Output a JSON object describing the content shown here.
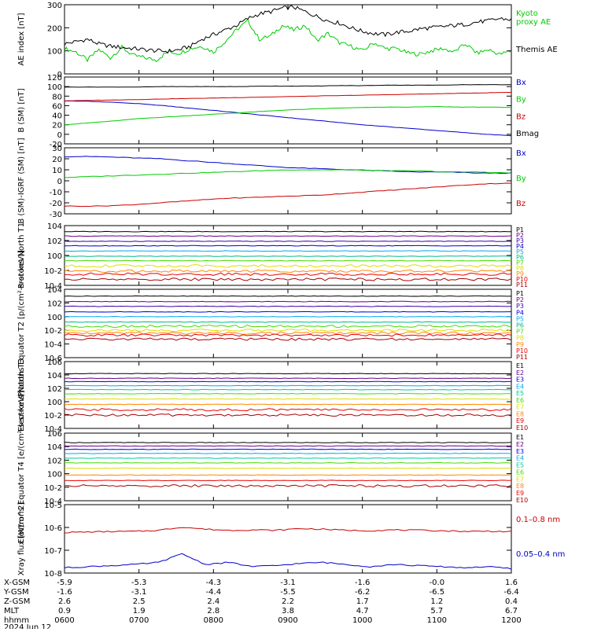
{
  "chart_data": {
    "type": "line",
    "date": "2024 Jun 12",
    "x_ticks": [
      "0600",
      "0700",
      "0800",
      "0900",
      "1000",
      "1100",
      "1200"
    ],
    "orbit": {
      "rows": [
        {
          "label": "X-GSM",
          "values": [
            "-5.9",
            "-5.3",
            "-4.3",
            "-3.1",
            "-1.6",
            "-0.0",
            "1.6"
          ]
        },
        {
          "label": "Y-GSM",
          "values": [
            "-1.6",
            "-3.1",
            "-4.4",
            "-5.5",
            "-6.2",
            "-6.5",
            "-6.4"
          ]
        },
        {
          "label": "Z-GSM",
          "values": [
            "2.6",
            "2.5",
            "2.4",
            "2.2",
            "1.7",
            "1.2",
            "0.4"
          ]
        },
        {
          "label": "MLT",
          "values": [
            "0.9",
            "1.9",
            "2.8",
            "3.8",
            "4.7",
            "5.7",
            "6.7"
          ]
        },
        {
          "label": "hhmm",
          "values": [
            "0600",
            "0700",
            "0800",
            "0900",
            "1000",
            "1100",
            "1200"
          ]
        }
      ]
    },
    "panels": [
      {
        "id": "ae",
        "ylabel": "AE index [nT]",
        "scale": "linear",
        "ylim": [
          0,
          300
        ],
        "ticks": [
          "0",
          "100",
          "200",
          "300"
        ],
        "series": [
          {
            "name": "Kyoto proxy AE",
            "color": "#00cc00",
            "values": [
              110,
              95,
              60,
              105,
              70,
              115,
              80,
              70,
              60,
              95,
              90,
              110,
              120,
              95,
              140,
              190,
              230,
              150,
              165,
              210,
              190,
              210,
              145,
              175,
              135,
              120,
              100,
              135,
              110,
              110,
              90,
              85,
              100,
              110,
              95,
              130,
              90,
              105,
              85,
              100
            ]
          },
          {
            "name": "Themis AE",
            "color": "#000000",
            "values": [
              130,
              140,
              150,
              130,
              120,
              115,
              110,
              105,
              100,
              98,
              105,
              120,
              150,
              170,
              190,
              210,
              240,
              260,
              270,
              285,
              290,
              270,
              250,
              230,
              220,
              200,
              185,
              175,
              170,
              180,
              185,
              195,
              200,
              205,
              210,
              215,
              225,
              230,
              240,
              235
            ]
          }
        ]
      },
      {
        "id": "b",
        "ylabel": "B (SM) [nT]",
        "scale": "linear",
        "ylim": [
          -20,
          120
        ],
        "ticks": [
          "-20",
          "0",
          "20",
          "40",
          "60",
          "80",
          "100",
          "120"
        ],
        "series": [
          {
            "name": "Bx",
            "color": "#0000cc",
            "values": [
              70,
              69,
              67,
              64,
              60,
              55,
              50,
              45,
              40,
              35,
              30,
              25,
              20,
              16,
              12,
              8,
              4,
              0,
              -3
            ]
          },
          {
            "name": "By",
            "color": "#00cc00",
            "values": [
              20,
              24,
              28,
              33,
              36,
              39,
              42,
              45,
              48,
              51,
              53,
              55,
              56,
              57,
              57,
              58,
              57,
              57,
              56
            ]
          },
          {
            "name": "Bz",
            "color": "#cc0000",
            "values": [
              70,
              71,
              72,
              73,
              74,
              75,
              76,
              77,
              78,
              79,
              80,
              81,
              82,
              83,
              84,
              85,
              86,
              87,
              88
            ]
          },
          {
            "name": "Bmag",
            "color": "#000000",
            "values": [
              99,
              99,
              99,
              99,
              100,
              100,
              100,
              100,
              101,
              101,
              101,
              102,
              102,
              103,
              103,
              103,
              104,
              104,
              104
            ]
          }
        ]
      },
      {
        "id": "dbb",
        "ylabel": "B (SM)-IGRF (SM) [nT]",
        "scale": "linear",
        "ylim": [
          -30,
          30
        ],
        "ticks": [
          "-30",
          "-20",
          "-10",
          "0",
          "10",
          "20",
          "30"
        ],
        "series": [
          {
            "name": "Bx",
            "color": "#0000cc",
            "values": [
              22,
              22,
              21,
              20,
              18,
              16,
              14,
              12,
              11,
              10,
              9,
              8,
              8,
              7,
              7
            ]
          },
          {
            "name": "By",
            "color": "#00cc00",
            "values": [
              3,
              4,
              5,
              6,
              7,
              8,
              9,
              10,
              10,
              10,
              9,
              9,
              8,
              8,
              7
            ]
          },
          {
            "name": "Bz",
            "color": "#cc0000",
            "values": [
              -23,
              -23,
              -22,
              -20,
              -18,
              -16,
              -15,
              -14,
              -13,
              -11,
              -9,
              -7,
              -5,
              -3,
              -2
            ]
          }
        ]
      },
      {
        "id": "pn",
        "ylabel": "Protons North T1",
        "scale": "log",
        "ylim": [
          -4,
          4
        ],
        "ticks": [
          "10-4",
          "10-2",
          "100",
          "102",
          "104"
        ],
        "series": [
          {
            "name": "P1",
            "color": "#000000",
            "level": 3.2
          },
          {
            "name": "P2",
            "color": "#6a008a",
            "level": 2.6
          },
          {
            "name": "P3",
            "color": "#3a00aa",
            "level": 1.9
          },
          {
            "name": "P4",
            "color": "#0000dd",
            "level": 1.3
          },
          {
            "name": "P5",
            "color": "#00aaee",
            "level": 0.6
          },
          {
            "name": "P6",
            "color": "#00bb88",
            "level": -0.1
          },
          {
            "name": "P7",
            "color": "#44dd00",
            "level": -0.7
          },
          {
            "name": "P8",
            "color": "#dddd00",
            "level": -1.4
          },
          {
            "name": "P9",
            "color": "#ff8800",
            "level": -2.1
          },
          {
            "name": "P10",
            "color": "#ee0000",
            "level": -2.5
          },
          {
            "name": "P11",
            "color": "#aa0000",
            "level": -3.2
          }
        ]
      },
      {
        "id": "pe",
        "ylabel": "Protons Equator T2 [p/(cm²-s-sr-keV)]",
        "scale": "log",
        "ylim": [
          -6,
          4
        ],
        "ticks": [
          "10-6",
          "10-4",
          "10-2",
          "100",
          "102",
          "104"
        ],
        "series": [
          {
            "name": "P1",
            "color": "#000000",
            "level": 3.0
          },
          {
            "name": "P2",
            "color": "#6a008a",
            "level": 2.2
          },
          {
            "name": "P3",
            "color": "#3a00aa",
            "level": 1.5
          },
          {
            "name": "P4",
            "color": "#0000dd",
            "level": 0.7
          },
          {
            "name": "P5",
            "color": "#00aaee",
            "level": 0.0
          },
          {
            "name": "P6",
            "color": "#00bb88",
            "level": -0.8
          },
          {
            "name": "P7",
            "color": "#44dd00",
            "level": -1.4
          },
          {
            "name": "P8",
            "color": "#dddd00",
            "level": -2.0
          },
          {
            "name": "P9",
            "color": "#ff8800",
            "level": -2.4
          },
          {
            "name": "P10",
            "color": "#ee0000",
            "level": -2.7
          },
          {
            "name": "P11",
            "color": "#aa0000",
            "level": -3.3
          }
        ]
      },
      {
        "id": "en",
        "ylabel": "Electrons North T3",
        "scale": "log",
        "ylim": [
          -4,
          6
        ],
        "ticks": [
          "10-4",
          "10-2",
          "100",
          "102",
          "104",
          "106"
        ],
        "series": [
          {
            "name": "E1",
            "color": "#000000",
            "level": 4.2
          },
          {
            "name": "E2",
            "color": "#6a008a",
            "level": 3.5
          },
          {
            "name": "E3",
            "color": "#0000dd",
            "level": 3.0
          },
          {
            "name": "E4",
            "color": "#00aaee",
            "level": 2.4
          },
          {
            "name": "E5",
            "color": "#00cc99",
            "level": 1.8
          },
          {
            "name": "E6",
            "color": "#44dd00",
            "level": 1.2
          },
          {
            "name": "E7",
            "color": "#dddd00",
            "level": 0.4
          },
          {
            "name": "E8",
            "color": "#ff8800",
            "level": -0.4
          },
          {
            "name": "E9",
            "color": "#ee0000",
            "level": -1.2
          },
          {
            "name": "E10",
            "color": "#aa0000",
            "level": -2.0
          }
        ]
      },
      {
        "id": "ee",
        "ylabel": "Electrons Equator T4 [e/(cm²-s-sr-keV)]",
        "scale": "log",
        "ylim": [
          -4,
          6
        ],
        "ticks": [
          "10-4",
          "10-2",
          "100",
          "102",
          "104",
          "106"
        ],
        "series": [
          {
            "name": "E1",
            "color": "#000000",
            "level": 4.6
          },
          {
            "name": "E2",
            "color": "#6a008a",
            "level": 4.1
          },
          {
            "name": "E3",
            "color": "#0000dd",
            "level": 3.6
          },
          {
            "name": "E4",
            "color": "#00aaee",
            "level": 3.0
          },
          {
            "name": "E5",
            "color": "#00cc99",
            "level": 2.3
          },
          {
            "name": "E6",
            "color": "#44dd00",
            "level": 1.6
          },
          {
            "name": "E7",
            "color": "#dddd00",
            "level": 0.8
          },
          {
            "name": "E8",
            "color": "#ff8800",
            "level": -0.2
          },
          {
            "name": "E9",
            "color": "#ee0000",
            "level": -1.0
          },
          {
            "name": "E10",
            "color": "#aa0000",
            "level": -1.8
          }
        ]
      },
      {
        "id": "xray",
        "ylabel": "Xray flux [W/m^2]",
        "scale": "log",
        "ylim": [
          -8.1,
          -4.9
        ],
        "ticks": [
          "10-8",
          "10-7",
          "10-6",
          "10-5"
        ],
        "series": [
          {
            "name": "0.1–0.8 nm",
            "color": "#cc0000",
            "values": [
              -6.2,
              -6.18,
              -6.16,
              -6.15,
              -6.1,
              -5.95,
              -6.05,
              -6.1,
              -6.08,
              -6.1,
              -6.02,
              -6.05,
              -6.1,
              -6.12,
              -6.08,
              -6.1,
              -6.12,
              -6.15,
              -6.14,
              -6.16
            ]
          },
          {
            "name": "0.05–0.4 nm",
            "color": "#0000cc",
            "values": [
              -7.85,
              -7.8,
              -7.75,
              -7.7,
              -7.6,
              -7.2,
              -7.7,
              -7.6,
              -7.8,
              -7.75,
              -7.65,
              -7.6,
              -7.7,
              -7.8,
              -7.7,
              -7.75,
              -7.8,
              -7.85,
              -7.8,
              -7.9
            ]
          }
        ]
      }
    ]
  }
}
